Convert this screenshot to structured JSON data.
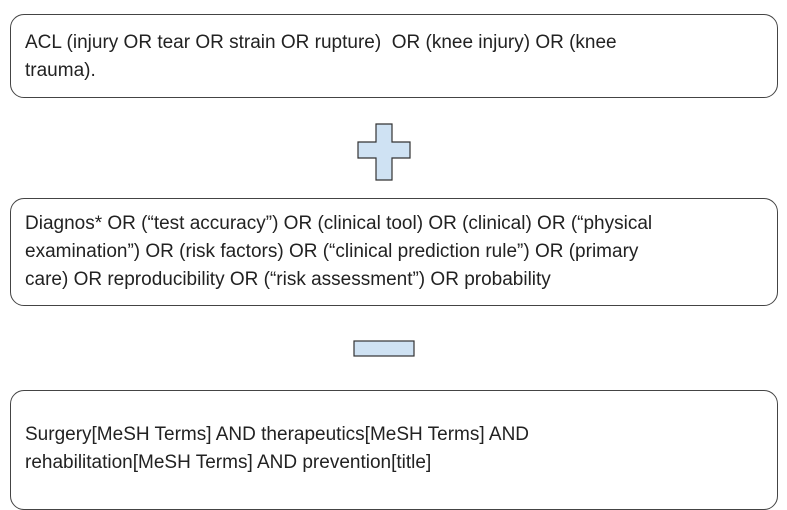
{
  "boxes": [
    {
      "lines": [
        "ACL (injury OR tear OR strain OR rupture)  OR (knee injury) OR (knee",
        "trauma)."
      ]
    },
    {
      "lines": [
        "Diagnos* OR (“test accuracy”) OR (clinical tool) OR (clinical) OR (“physical",
        "examination”) OR (risk factors) OR (“clinical prediction rule”) OR (primary",
        "care) OR reproducibility OR (“risk assessment”) OR probability"
      ]
    },
    {
      "lines": [
        "Surgery[MeSH Terms] AND therapeutics[MeSH Terms] AND",
        "rehabilitation[MeSH Terms] AND prevention[title]"
      ]
    }
  ]
}
